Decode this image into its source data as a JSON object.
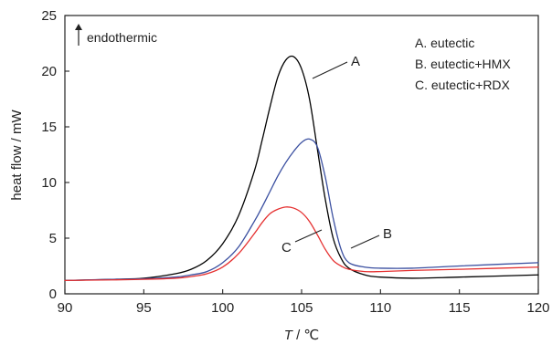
{
  "chart_data": {
    "type": "line",
    "xlabel": {
      "var": "T",
      "unit": " / ℃"
    },
    "ylabel": "heat flow / mW",
    "xlim": [
      90,
      120
    ],
    "ylim": [
      0,
      25
    ],
    "xticks": [
      90,
      95,
      100,
      105,
      110,
      115,
      120
    ],
    "yticks": [
      0,
      5,
      10,
      15,
      20,
      25
    ],
    "grid": false,
    "legend_position": "top-right",
    "annotation": "endothermic",
    "legend": [
      "A. eutectic",
      "B. eutectic+HMX",
      "C. eutectic+RDX"
    ],
    "series": [
      {
        "label": "A",
        "color": "#000000",
        "x": [
          90,
          93,
          95,
          97,
          98,
          99,
          100,
          101,
          102,
          102.5,
          103,
          103.5,
          104,
          104.5,
          105,
          105.5,
          106,
          106.5,
          107,
          107.5,
          108,
          109,
          110,
          112,
          115,
          120
        ],
        "y": [
          1.2,
          1.3,
          1.4,
          1.8,
          2.2,
          3.0,
          4.5,
          7.0,
          11.0,
          13.8,
          16.8,
          19.5,
          21.0,
          21.3,
          20.2,
          17.5,
          13.0,
          8.5,
          5.0,
          3.2,
          2.3,
          1.7,
          1.5,
          1.4,
          1.5,
          1.7
        ]
      },
      {
        "label": "B",
        "color": "#3a4fa0",
        "x": [
          90,
          93,
          95,
          97,
          98,
          99,
          100,
          101,
          102,
          102.5,
          103,
          103.5,
          104,
          104.5,
          105,
          105.5,
          106,
          106.5,
          107,
          107.5,
          108,
          109,
          110,
          112,
          115,
          120
        ],
        "y": [
          1.2,
          1.3,
          1.35,
          1.5,
          1.7,
          2.0,
          2.8,
          4.2,
          6.5,
          7.8,
          9.2,
          10.6,
          11.8,
          12.8,
          13.6,
          13.9,
          13.2,
          10.5,
          6.8,
          4.0,
          2.8,
          2.4,
          2.3,
          2.3,
          2.5,
          2.8
        ]
      },
      {
        "label": "C",
        "color": "#e53030",
        "x": [
          90,
          93,
          95,
          97,
          98,
          99,
          100,
          101,
          102,
          102.5,
          103,
          103.5,
          104,
          104.5,
          105,
          105.5,
          106,
          106.5,
          107,
          107.5,
          108,
          109,
          110,
          112,
          115,
          120
        ],
        "y": [
          1.2,
          1.25,
          1.3,
          1.4,
          1.55,
          1.8,
          2.4,
          3.6,
          5.4,
          6.4,
          7.2,
          7.6,
          7.8,
          7.7,
          7.3,
          6.5,
          5.3,
          4.0,
          3.0,
          2.5,
          2.2,
          2.0,
          2.0,
          2.1,
          2.2,
          2.4
        ]
      }
    ]
  }
}
